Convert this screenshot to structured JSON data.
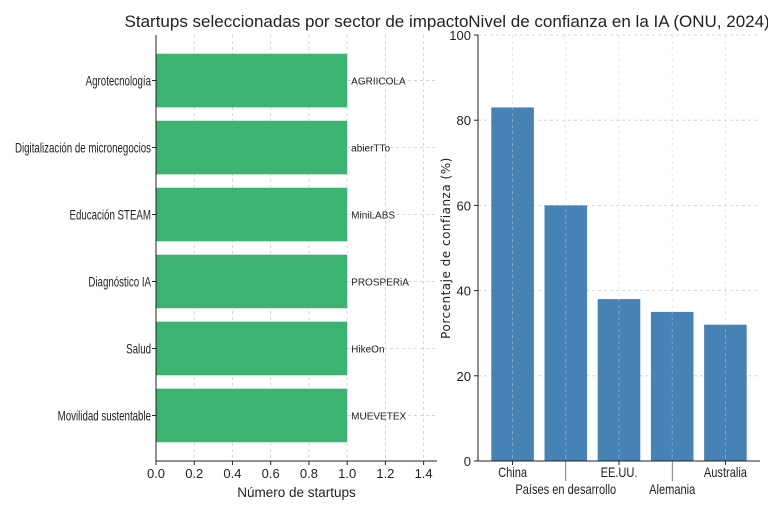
{
  "chart_data": [
    {
      "type": "bar",
      "orientation": "horizontal",
      "title": "Startups seleccionadas por sector de impacto",
      "xlabel": "Número de startups",
      "ylabel": "",
      "categories": [
        "Agrotecnología",
        "Digitalización de micronegocios",
        "Educación STEAM",
        "Diagnóstico IA",
        "Salud",
        "Movilidad sustentable"
      ],
      "values": [
        1,
        1,
        1,
        1,
        1,
        1
      ],
      "annotations": [
        "AGRIICOLA",
        "abierTTo",
        "MiniLABS",
        "PROSPERiA",
        "HikeOn",
        "MUEVETEX"
      ],
      "xticks": [
        "0.0",
        "0.2",
        "0.4",
        "0.6",
        "0.8",
        "1.0",
        "1.2",
        "1.4"
      ],
      "xlim": [
        0,
        1.47
      ],
      "grid": true,
      "color": "#3cb371"
    },
    {
      "type": "bar",
      "title": "Nivel de confianza en la IA (ONU, 2024)",
      "xlabel": "",
      "ylabel": "Porcentaje de confianza (%)",
      "categories": [
        "China",
        "Países en desarrollo",
        "EE.UU.",
        "Alemania",
        "Australia"
      ],
      "values": [
        83,
        60,
        38,
        35,
        32
      ],
      "yticks": [
        "0",
        "20",
        "40",
        "60",
        "80",
        "100"
      ],
      "ylim": [
        0,
        100
      ],
      "grid": true,
      "color": "#4682b4"
    }
  ]
}
